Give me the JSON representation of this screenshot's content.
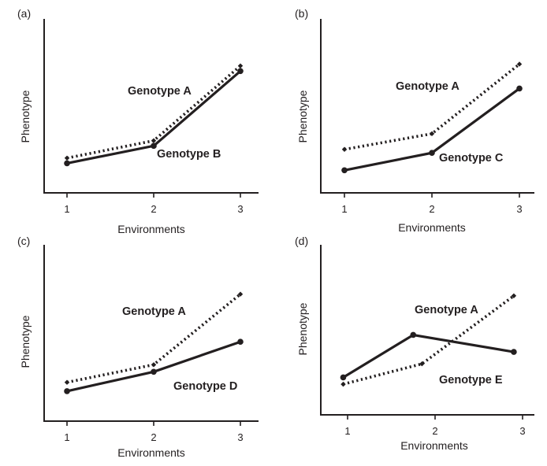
{
  "chart_data": [
    {
      "type": "line",
      "panel_label": "(a)",
      "xlabel": "Environments",
      "ylabel": "Phenotype",
      "categories": [
        1,
        2,
        3
      ],
      "series": [
        {
          "name": "Genotype A",
          "style": "dotted",
          "values": [
            0.2,
            0.3,
            0.73
          ]
        },
        {
          "name": "Genotype B",
          "style": "solid",
          "values": [
            0.17,
            0.27,
            0.7
          ]
        }
      ]
    },
    {
      "type": "line",
      "panel_label": "(b)",
      "xlabel": "Environments",
      "ylabel": "Phenotype",
      "categories": [
        1,
        2,
        3
      ],
      "series": [
        {
          "name": "Genotype A",
          "style": "dotted",
          "values": [
            0.25,
            0.34,
            0.74
          ]
        },
        {
          "name": "Genotype C",
          "style": "solid",
          "values": [
            0.13,
            0.23,
            0.6
          ]
        }
      ]
    },
    {
      "type": "line",
      "panel_label": "(c)",
      "xlabel": "Environments",
      "ylabel": "Phenotype",
      "categories": [
        1,
        2,
        3
      ],
      "series": [
        {
          "name": "Genotype A",
          "style": "dotted",
          "values": [
            0.22,
            0.32,
            0.72
          ]
        },
        {
          "name": "Genotype D",
          "style": "solid",
          "values": [
            0.17,
            0.28,
            0.45
          ]
        }
      ]
    },
    {
      "type": "line",
      "panel_label": "(d)",
      "xlabel": "Environments",
      "ylabel": "Phenotype",
      "categories": [
        1,
        2,
        3
      ],
      "series": [
        {
          "name": "Genotype A",
          "style": "dotted",
          "x": [
            0.95,
            1.85,
            2.9
          ],
          "values": [
            0.18,
            0.3,
            0.7
          ]
        },
        {
          "name": "Genotype E",
          "style": "solid",
          "x": [
            0.95,
            1.75,
            2.9
          ],
          "values": [
            0.22,
            0.47,
            0.37
          ]
        }
      ]
    }
  ]
}
